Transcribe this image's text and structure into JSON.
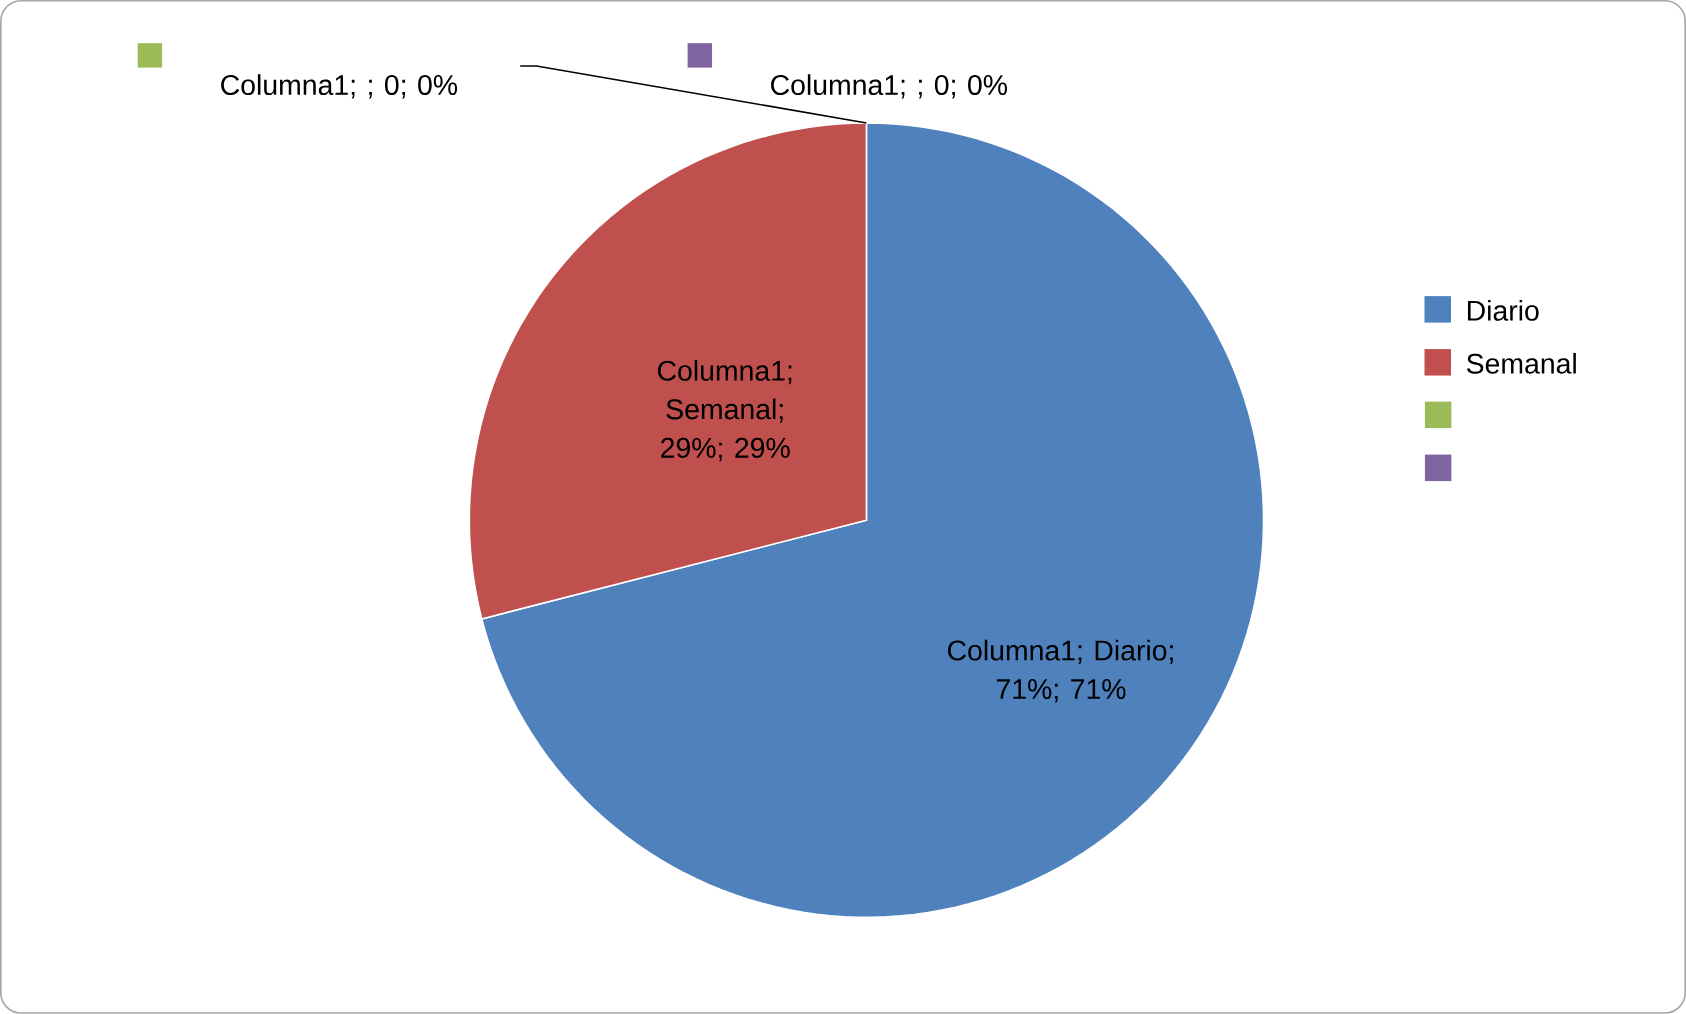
{
  "chart_data": {
    "type": "pie",
    "categories": [
      "Diario",
      "Semanal",
      null,
      null
    ],
    "values": [
      71,
      29,
      0,
      0
    ],
    "colors": [
      "#4f81bd",
      "#c0504d",
      "#9bbb59",
      "#8064a2"
    ],
    "value_labels": [
      "Columna1; Diario; 71%; 71%",
      "Columna1; Semanal; 29%; 29%",
      "Columna1; ; 0; 0%",
      "Columna1; ; 0; 0%"
    ],
    "legend": "right"
  }
}
